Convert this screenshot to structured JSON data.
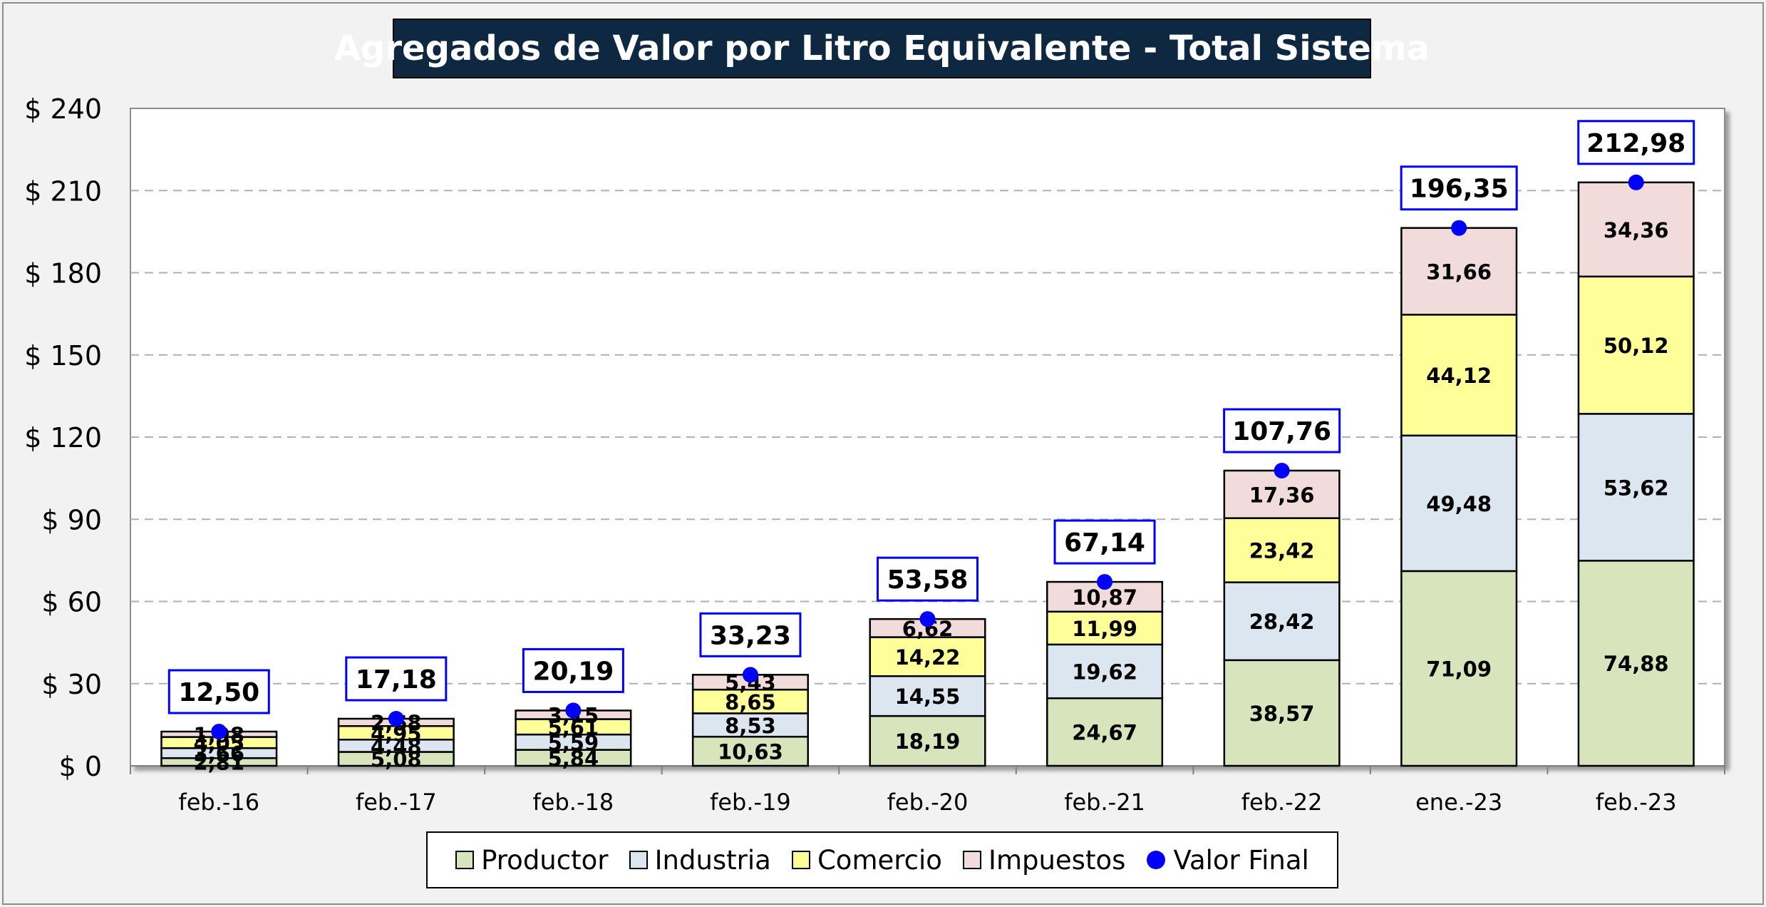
{
  "chart_data": {
    "type": "bar",
    "stacked": true,
    "title": "Agregados de Valor por Litro Equivalente - Total Sistema",
    "categories": [
      "feb.-16",
      "feb.-17",
      "feb.-18",
      "feb.-19",
      "feb.-20",
      "feb.-21",
      "feb.-22",
      "ene.-23",
      "feb.-23"
    ],
    "series": [
      {
        "name": "Productor",
        "color": "#d8e4bc",
        "values": [
          2.81,
          5.08,
          5.84,
          10.63,
          18.19,
          24.67,
          38.57,
          71.09,
          74.88
        ]
      },
      {
        "name": "Industria",
        "color": "#dce6f1",
        "values": [
          3.66,
          4.48,
          5.59,
          8.53,
          14.55,
          19.62,
          28.42,
          49.48,
          53.62
        ]
      },
      {
        "name": "Comercio",
        "color": "#ffff99",
        "values": [
          4.05,
          4.95,
          5.61,
          8.65,
          14.22,
          11.99,
          23.42,
          44.12,
          50.12
        ]
      },
      {
        "name": "Impuestos",
        "color": "#f2dcdb",
        "values": [
          1.98,
          2.68,
          3.15,
          5.43,
          6.62,
          10.87,
          17.36,
          31.66,
          34.36
        ]
      }
    ],
    "value_labels": {
      "Productor": [
        "2,81",
        "5,08",
        "5,84",
        "10,63",
        "18,19",
        "24,67",
        "38,57",
        "71,09",
        "74,88"
      ],
      "Industria": [
        "3,66",
        "4,48",
        "5,59",
        "8,53",
        "14,55",
        "19,62",
        "28,42",
        "49,48",
        "53,62"
      ],
      "Comercio": [
        "4,05",
        "4,95",
        "5,61",
        "8,65",
        "14,22",
        "11,99",
        "23,42",
        "44,12",
        "50,12"
      ],
      "Impuestos": [
        "1,98",
        "2,68",
        "3,15",
        "5,43",
        "6,62",
        "10,87",
        "17,36",
        "31,66",
        "34,36"
      ]
    },
    "total_series": {
      "name": "Valor Final",
      "color": "#0000ff",
      "values": [
        12.5,
        17.18,
        20.19,
        33.23,
        53.58,
        67.14,
        107.76,
        196.35,
        212.98
      ],
      "labels": [
        "12,50",
        "17,18",
        "20,19",
        "33,23",
        "53,58",
        "67,14",
        "107,76",
        "196,35",
        "212,98"
      ]
    },
    "ylim": [
      0,
      240
    ],
    "yticks": [
      0,
      30,
      60,
      90,
      120,
      150,
      180,
      210,
      240
    ],
    "ytick_labels": [
      "$ 0",
      "$ 30",
      "$ 60",
      "$ 90",
      "$ 120",
      "$ 150",
      "$ 180",
      "$ 210",
      "$ 240"
    ],
    "grid": "horizontal-dashed",
    "legend_position": "bottom",
    "xlabel": "",
    "ylabel": ""
  },
  "legend": {
    "productor": "Productor",
    "industria": "Industria",
    "comercio": "Comercio",
    "impuestos": "Impuestos",
    "valor_final": "Valor Final"
  },
  "colors": {
    "title_background": "#0e2841",
    "plot_background": "#ffffff",
    "label_box_border": "#0000ff"
  }
}
